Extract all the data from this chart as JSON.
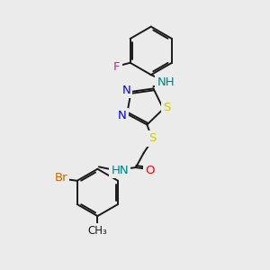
{
  "background_color": "#ebebeb",
  "bond_color": "#1a1a1a",
  "atom_colors": {
    "N": "#0000ff",
    "S": "#cccc00",
    "O": "#ff0000",
    "F": "#ff00cc",
    "Br": "#cc6600",
    "NH": "#008080",
    "C": "#1a1a1a"
  },
  "lw": 1.4,
  "fontsize": 9.5
}
